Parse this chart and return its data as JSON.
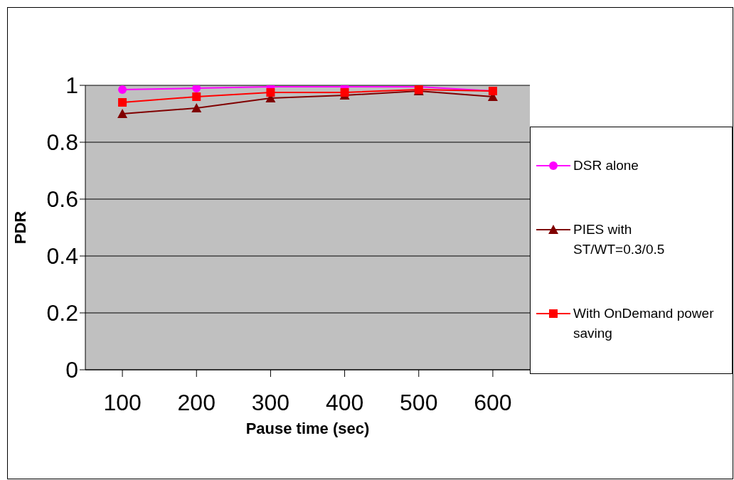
{
  "chart_data": {
    "type": "line",
    "xlabel": "Pause time (sec)",
    "ylabel": "PDR",
    "categories": [
      "100",
      "200",
      "300",
      "400",
      "500",
      "600"
    ],
    "series": [
      {
        "name": "DSR alone",
        "color": "#ff00ff",
        "marker": "circle",
        "values": [
          0.985,
          0.99,
          0.995,
          0.995,
          0.995,
          0.98
        ]
      },
      {
        "name": "PIES with ST/WT=0.3/0.5",
        "color": "#800000",
        "marker": "triangle",
        "values": [
          0.9,
          0.92,
          0.955,
          0.965,
          0.98,
          0.96
        ]
      },
      {
        "name": "With OnDemand power saving",
        "color": "#ff0000",
        "marker": "square",
        "values": [
          0.94,
          0.96,
          0.975,
          0.975,
          0.985,
          0.98
        ]
      }
    ],
    "ylim": [
      0,
      1
    ],
    "yticks": [
      0,
      0.2,
      0.4,
      0.6,
      0.8,
      1
    ],
    "grid": "y",
    "legend": "right"
  }
}
